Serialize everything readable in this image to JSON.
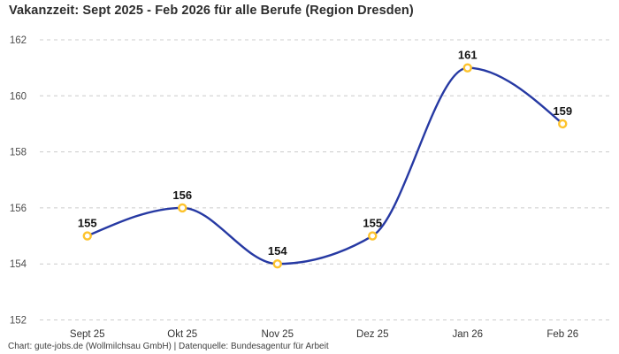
{
  "header": {
    "title": "Vakanzzeit: Sept 2025 - Feb 2026 für alle Berufe (Region Dresden)"
  },
  "footer": {
    "credit": "Chart: gute-jobs.de (Wollmilchsau GmbH) | Datenquelle: Bundesagentur für Arbeit"
  },
  "chart_data": {
    "type": "line",
    "title": "Vakanzzeit: Sept 2025 - Feb 2026 für alle Berufe (Region Dresden)",
    "categories": [
      "Sept 25",
      "Okt 25",
      "Nov 25",
      "Dez 25",
      "Jan 26",
      "Feb 26"
    ],
    "values": [
      155,
      156,
      154,
      155,
      161,
      159
    ],
    "series_name": "Vakanzzeit",
    "xlabel": "",
    "ylabel": "",
    "ylim": [
      152,
      162
    ],
    "yticks": [
      152,
      154,
      156,
      158,
      160,
      162
    ],
    "grid": "horizontal-dashed",
    "legend": "none",
    "curve": "monotone",
    "data_labels": [
      155,
      156,
      154,
      155,
      161,
      159
    ],
    "colors": {
      "line": "#2639a3",
      "marker_stroke": "#fdc32d",
      "marker_fill": "#ffffff",
      "grid": "#cccccc",
      "y_tick_label": "#4e4e4e",
      "x_tick_label": "#333333",
      "value_label": "#131313",
      "title": "#2d2d2d",
      "footer": "#404040",
      "background": "#ffffff"
    }
  }
}
